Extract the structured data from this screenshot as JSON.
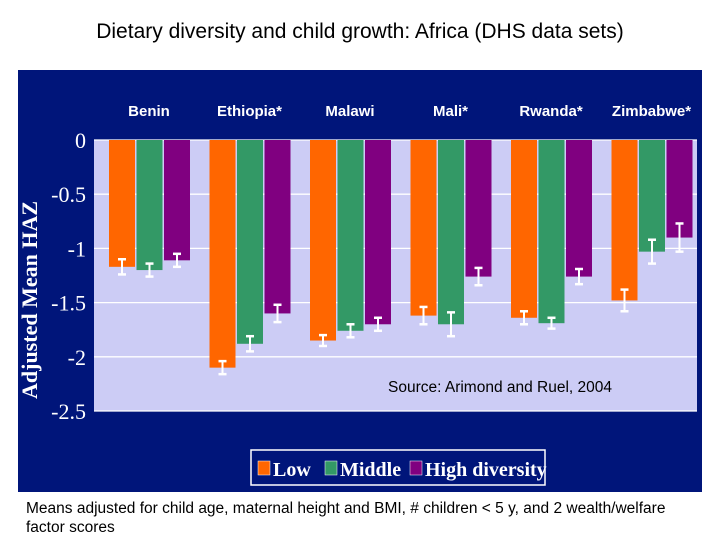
{
  "title": "Dietary diversity and child growth:  Africa (DHS data sets)",
  "footnote": "Means adjusted for child age, maternal height and BMI, # children < 5 y, and 2 wealth/welfare factor scores",
  "chart_data": {
    "type": "bar",
    "title": "",
    "ylabel": "Adjusted Mean HAZ",
    "xlabel": "",
    "ylim": [
      -2.5,
      0
    ],
    "yticks": [
      "0",
      "-0.5",
      "-1",
      "-1.5",
      "-2",
      "-2.5"
    ],
    "categories": [
      "Benin",
      "Ethiopia*",
      "Malawi",
      "Mali*",
      "Rwanda*",
      "Zimbabwe*"
    ],
    "series": [
      {
        "name": "Low",
        "color": "#ff6600",
        "values": [
          -1.17,
          -2.1,
          -1.85,
          -1.62,
          -1.64,
          -1.48
        ],
        "error": [
          0.07,
          0.06,
          0.05,
          0.08,
          0.06,
          0.1
        ]
      },
      {
        "name": "Middle",
        "color": "#339966",
        "values": [
          -1.2,
          -1.88,
          -1.76,
          -1.7,
          -1.69,
          -1.03
        ],
        "error": [
          0.06,
          0.07,
          0.06,
          0.11,
          0.05,
          0.11
        ]
      },
      {
        "name": "High diversity",
        "color": "#800080",
        "values": [
          -1.11,
          -1.6,
          -1.7,
          -1.26,
          -1.26,
          -0.9
        ],
        "error": [
          0.06,
          0.08,
          0.06,
          0.08,
          0.07,
          0.13
        ]
      }
    ],
    "annotation": "Source: Arimond and Ruel, 2004",
    "grid": true,
    "legend_position": "bottom",
    "plot_background": "#ccccf5",
    "frame_color": "#00157a"
  }
}
